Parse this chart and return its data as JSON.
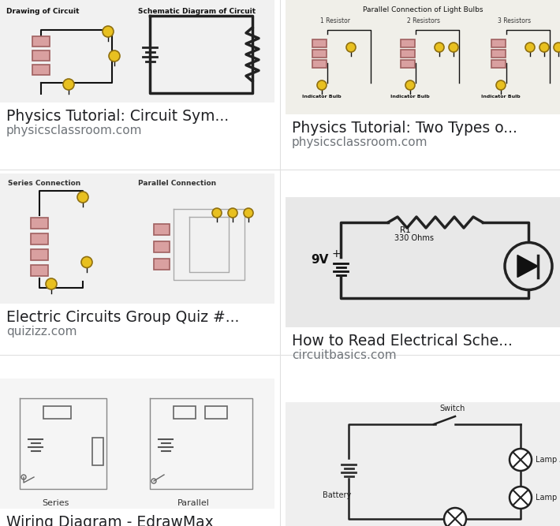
{
  "bg_color": "#ffffff",
  "title_color": "#202124",
  "url_color": "#70757a",
  "title_font_size": 13.5,
  "url_font_size": 11,
  "card_bg_1": "#f1f1f1",
  "card_bg_2": "#f0efe9",
  "card_bg_3": "#f1f1f1",
  "card_bg_4": "#e8e8e8",
  "card_bg_5": "#f5f5f5",
  "card_bg_6": "#efefef",
  "wire_color": "#111111",
  "line_color": "#222222",
  "pink": "#d9a0a0",
  "gold": "#e8c020",
  "divider": "#e0e0e0",
  "cards": [
    {
      "title": "Physics Tutorial: Circuit Sym...",
      "url": "physicsclassroom.com"
    },
    {
      "title": "Physics Tutorial: Two Types o...",
      "url": "physicsclassroom.com"
    },
    {
      "title": "Electric Circuits Group Quiz #...",
      "url": "quizizz.com"
    },
    {
      "title": "How to Read Electrical Sche...",
      "url": "circuitbasics.com"
    },
    {
      "title": "Wiring Diagram - EdrawMax",
      "url": ""
    },
    {
      "title": "",
      "url": ""
    }
  ]
}
